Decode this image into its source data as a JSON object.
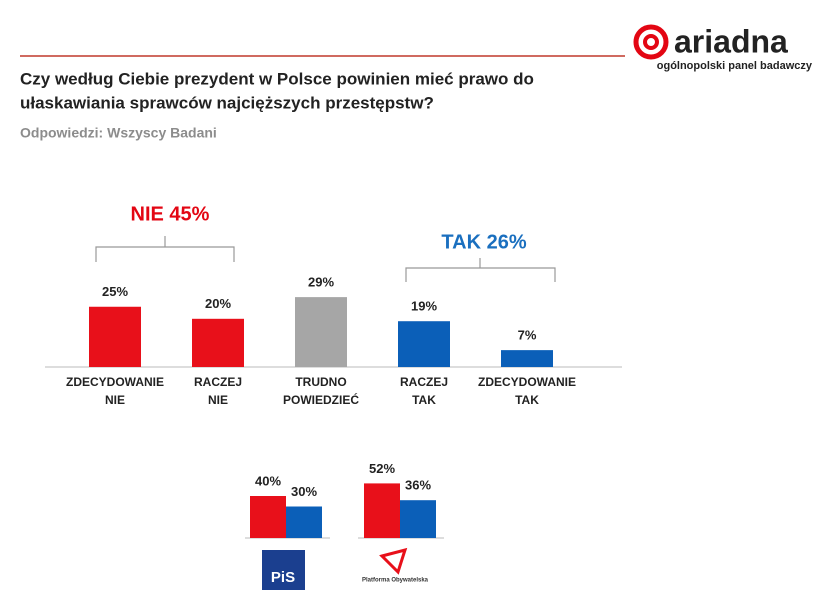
{
  "logo": {
    "name": "ariadna",
    "tagline": "ogólnopolski panel badawczy"
  },
  "chart_data": [
    {
      "type": "bar",
      "title": [
        "Czy według Ciebie prezydent w Polsce powinien mieć prawo do",
        "ułaskawiania sprawców najcięższych przestępstw?"
      ],
      "subtitle": "Odpowiedzi:  Wszyscy Badani",
      "categories": [
        [
          "ZDECYDOWANIE",
          "NIE"
        ],
        [
          "RACZEJ",
          "NIE"
        ],
        [
          "TRUDNO",
          "POWIEDZIEĆ"
        ],
        [
          "RACZEJ",
          "TAK"
        ],
        [
          "ZDECYDOWANIE",
          "TAK"
        ]
      ],
      "values": [
        25,
        20,
        29,
        19,
        7
      ],
      "value_labels": [
        "25%",
        "20%",
        "29%",
        "19%",
        "7%"
      ],
      "colors": [
        "#e8101a",
        "#e8101a",
        "#a6a6a6",
        "#0b5fb8",
        "#0b5fb8"
      ],
      "annotations": [
        {
          "text": "NIE 45%",
          "color": "#e30613"
        },
        {
          "text": "TAK 26%",
          "color": "#1a6fbf"
        }
      ]
    },
    {
      "type": "bar",
      "logo_text": "PiS",
      "values": [
        40,
        30
      ],
      "value_labels": [
        "40%",
        "30%"
      ],
      "colors": [
        "#e8101a",
        "#0b5fb8"
      ]
    },
    {
      "type": "bar",
      "logo_text": "Platforma Obywatelska",
      "values": [
        52,
        36
      ],
      "value_labels": [
        "52%",
        "36%"
      ],
      "colors": [
        "#e8101a",
        "#0b5fb8"
      ]
    }
  ]
}
